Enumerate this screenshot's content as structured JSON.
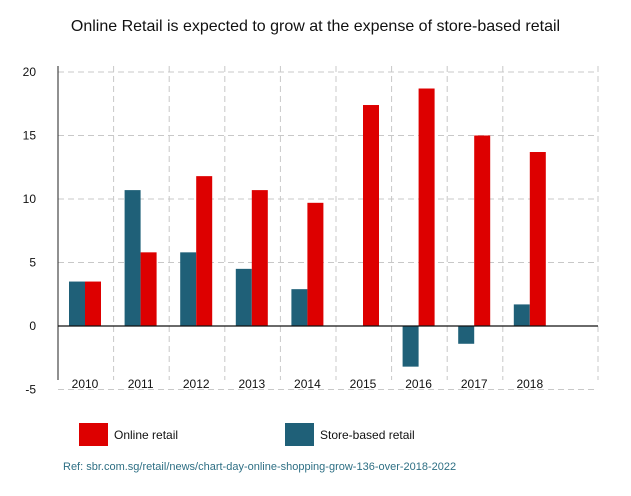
{
  "chart_data": {
    "type": "bar",
    "title": "Online Retail is expected to grow at the expense of store-based retail",
    "categories": [
      "2010",
      "2011",
      "2012",
      "2013",
      "2014",
      "2015",
      "2016",
      "2017",
      "2018"
    ],
    "series": [
      {
        "name": "Store-based retail",
        "color": "#1f6078",
        "values": [
          3.5,
          10.7,
          5.8,
          4.5,
          2.9,
          0,
          -3.2,
          -1.4,
          1.7
        ]
      },
      {
        "name": "Online retail",
        "color": "#dd0000",
        "values": [
          3.5,
          5.8,
          11.8,
          10.7,
          9.7,
          17.4,
          18.7,
          15.0,
          13.7
        ]
      }
    ],
    "yticks": [
      20,
      15,
      10,
      5,
      0,
      -5
    ],
    "ylim": [
      -5,
      20
    ],
    "grid": true,
    "legend_position": "bottom"
  },
  "reference": "Ref: sbr.com.sg/retail/news/chart-day-online-shopping-grow-136-over-2018-2022"
}
